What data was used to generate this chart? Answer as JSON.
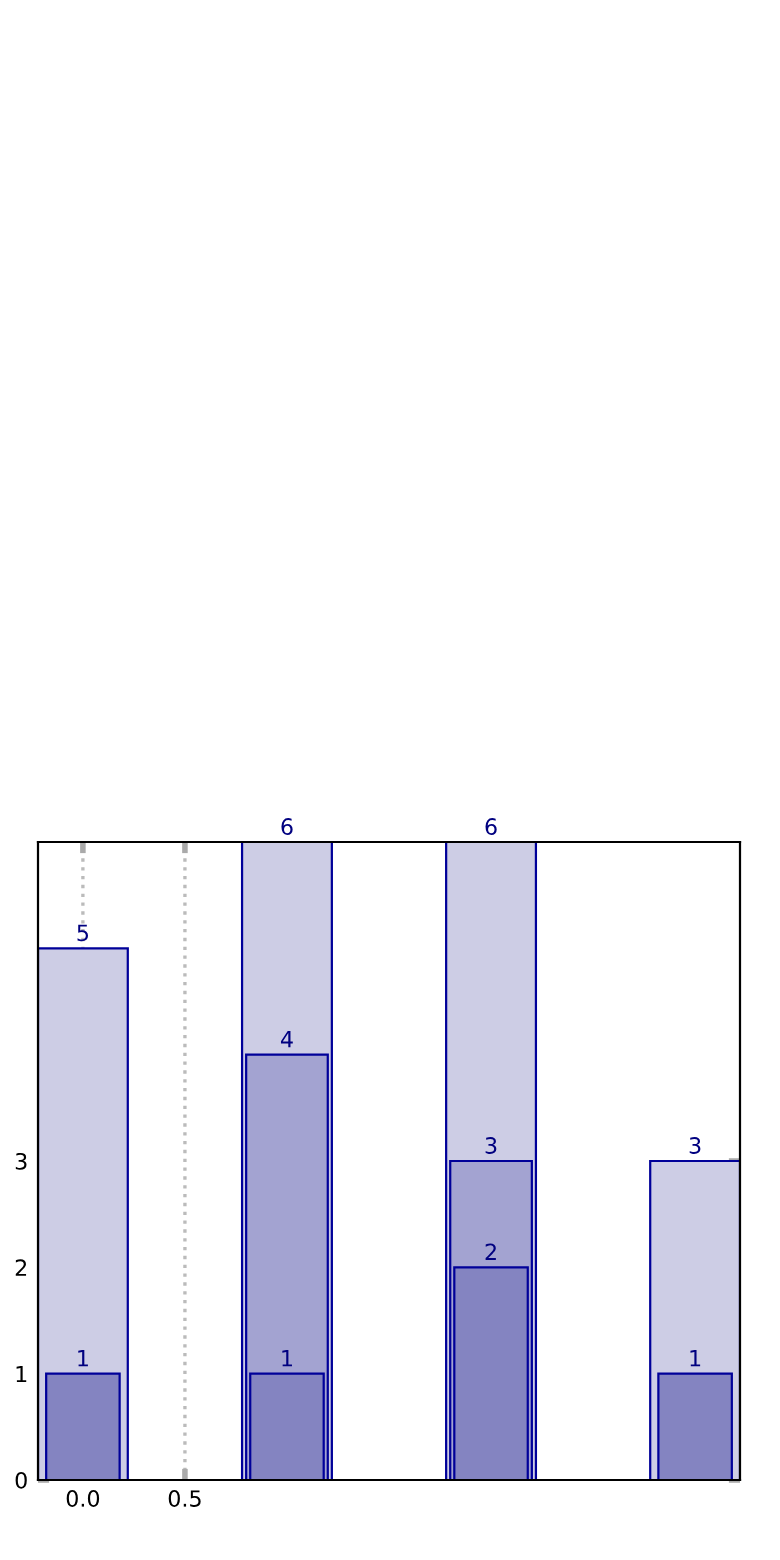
{
  "chart_data": {
    "type": "bar",
    "x": [
      0,
      1,
      2,
      3
    ],
    "series": [
      {
        "color": "#cdcde5",
        "values": [
          5,
          6,
          6,
          3
        ]
      },
      {
        "color": "#a3a3d1",
        "values": [
          null,
          4,
          3,
          null
        ]
      },
      {
        "color": "#8484c1",
        "values": [
          1,
          1,
          2,
          1
        ]
      }
    ],
    "xlim": [
      -0.22,
      3.22
    ],
    "ylim": [
      0,
      6
    ],
    "xticks": [
      {
        "value": 0,
        "label": "0.0"
      },
      {
        "value": 0.5,
        "label": "0.5"
      }
    ],
    "yticks": [
      0,
      1,
      2,
      3
    ],
    "grid": "x",
    "data_labels": true
  }
}
